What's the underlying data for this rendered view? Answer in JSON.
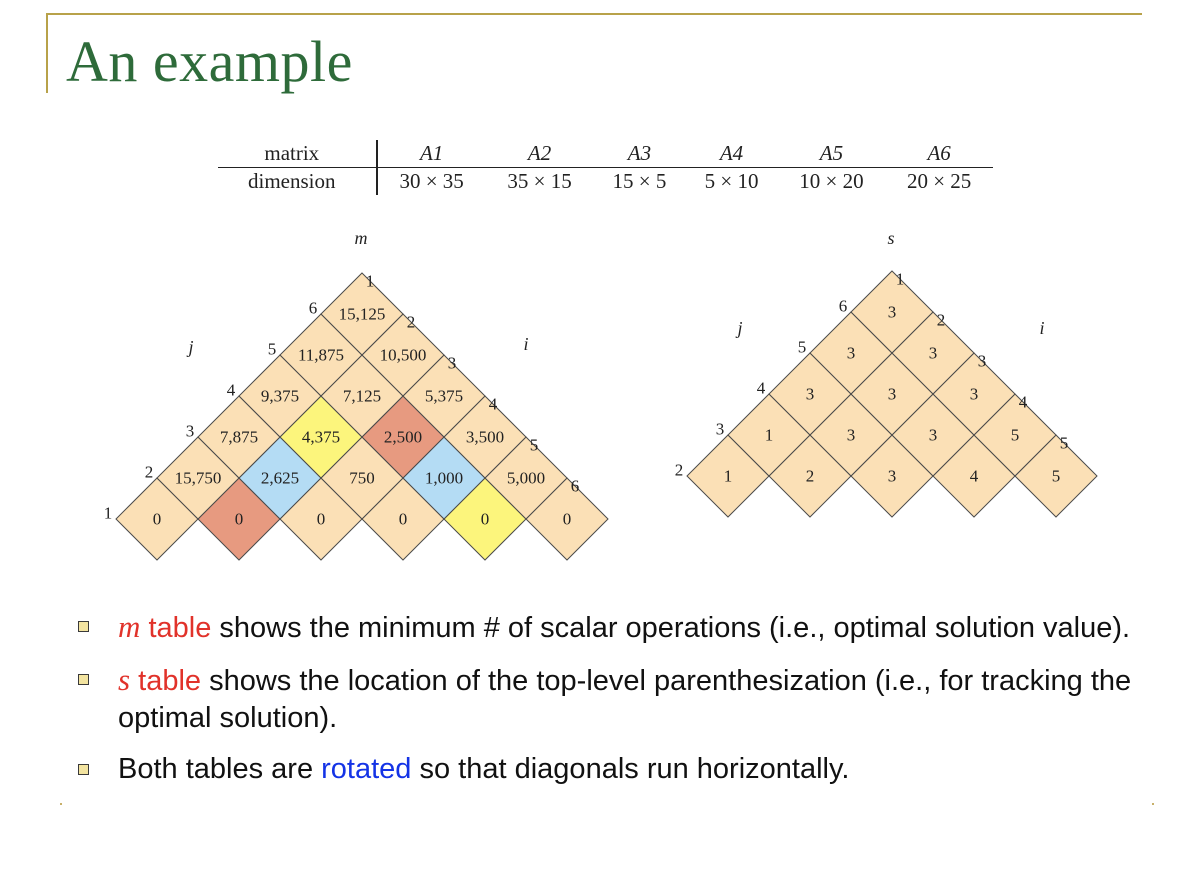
{
  "title": "An example",
  "dimension_table": {
    "row_labels": [
      "matrix",
      "dimension"
    ],
    "matrices": [
      "A1",
      "A2",
      "A3",
      "A4",
      "A5",
      "A6"
    ],
    "dimensions": [
      "30 × 35",
      "35 × 15",
      "15 × 5",
      "5 × 10",
      "10 × 20",
      "20 × 25"
    ]
  },
  "m_table": {
    "label": "m",
    "j_label": "j",
    "i_label": "i",
    "diagonals": [
      [
        "0",
        "0",
        "0",
        "0",
        "0",
        "0"
      ],
      [
        "15,750",
        "2,625",
        "750",
        "1,000",
        "5,000"
      ],
      [
        "7,875",
        "4,375",
        "2,500",
        "3,500"
      ],
      [
        "9,375",
        "7,125",
        "5,375"
      ],
      [
        "11,875",
        "10,500"
      ],
      [
        "15,125"
      ]
    ],
    "cell_colors": [
      [
        "tan",
        "red",
        "tan",
        "tan",
        "yellow",
        "tan"
      ],
      [
        "tan",
        "blue",
        "tan",
        "blue",
        "tan"
      ],
      [
        "tan",
        "yellow",
        "red",
        "tan"
      ],
      [
        "tan",
        "tan",
        "tan"
      ],
      [
        "tan",
        "tan"
      ],
      [
        "tan"
      ]
    ],
    "j_ticks": [
      "1",
      "2",
      "3",
      "4",
      "5",
      "6"
    ],
    "i_ticks": [
      "1",
      "2",
      "3",
      "4",
      "5",
      "6"
    ]
  },
  "s_table": {
    "label": "s",
    "j_label": "j",
    "i_label": "i",
    "diagonals": [
      [
        "1",
        "2",
        "3",
        "4",
        "5"
      ],
      [
        "1",
        "3",
        "3",
        "5"
      ],
      [
        "3",
        "3",
        "3"
      ],
      [
        "3",
        "3"
      ],
      [
        "3"
      ]
    ],
    "j_ticks": [
      "2",
      "3",
      "4",
      "5",
      "6"
    ],
    "i_ticks": [
      "1",
      "2",
      "3",
      "4",
      "5"
    ]
  },
  "colors": {
    "tan": "#fbe0b6",
    "red": "#e79a80",
    "blue": "#b4dcf4",
    "yellow": "#fcf57c",
    "title": "#2e6b3a",
    "frame": "#b8a24a"
  },
  "bullets": [
    {
      "term": "m",
      "term_suffix": " table",
      "text": " shows the minimum # of scalar operations (i.e., optimal solution value)."
    },
    {
      "term": "s",
      "term_suffix": " table",
      "text": " shows the location of the top-level parenthesization (i.e., for tracking the optimal solution)."
    },
    {
      "pre": "Both tables are ",
      "highlight": "rotated",
      "post": " so that diagonals run horizontally."
    }
  ]
}
